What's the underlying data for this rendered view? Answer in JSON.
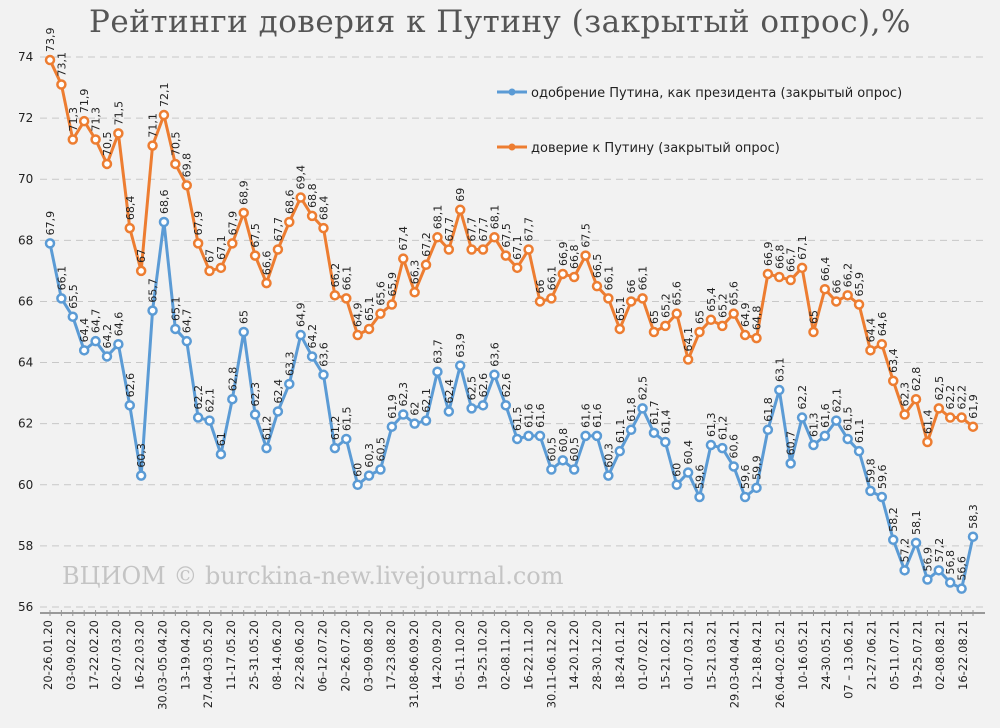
{
  "chart_data": {
    "type": "line",
    "title": "Рейтинги доверия к Путину (закрытый опрос),%",
    "watermark": "ВЦИОМ © burckina-new.livejournal.com",
    "xlabel": "",
    "ylabel": "",
    "ylim": [
      56,
      74
    ],
    "yticks": [
      56,
      58,
      60,
      62,
      64,
      66,
      68,
      70,
      72,
      74
    ],
    "grid": true,
    "legend_position": "top-right",
    "x_tick_labels": [
      "20-26.01.20",
      "03-09.02.20",
      "17-22.02.20",
      "02-07.03.20",
      "16-22.03.20",
      "30.03–05.04.20",
      "13-19.04.20",
      "27.04-03.05.20",
      "11-17.05.20",
      "25-31.05.20",
      "08-14.06.20",
      "22-28.06.20",
      "06–12.07.20",
      "20–26.07.20",
      "03–09.08.20",
      "17-23.08.20",
      "31.08-06.09.20",
      "14-20.09.20",
      "05-11.10.20",
      "19-25.10.20",
      "02-08.11.20",
      "16-22.11.20",
      "30.11-06.12.20",
      "14-20.12.20",
      "28-30.12.20",
      "18-24.01.21",
      "01-07.02.21",
      "15-21.02.21",
      "01-07.03.21",
      "15-21.03.21",
      "29.03-04.04.21",
      "12-18.04.21",
      "26.04-02.05.21",
      "10-16.05.21",
      "24-30.05.21",
      "07 – 13.06.21",
      "21-27.06.21",
      "05-11.07.21",
      "19-25.07.21",
      "02-08.08.21",
      "16-22.08.21"
    ],
    "series": [
      {
        "name": "одобрение Путина, как президента (закрытый опрос)",
        "color": "#5b9bd5",
        "values": [
          67.9,
          66.1,
          65.5,
          64.4,
          64.7,
          64.2,
          64.6,
          62.6,
          60.3,
          65.7,
          68.6,
          65.1,
          64.7,
          62.2,
          62.1,
          61,
          62.8,
          65,
          62.3,
          61.2,
          62.4,
          63.3,
          64.9,
          64.2,
          63.6,
          61.2,
          61.5,
          60,
          60.3,
          60.5,
          61.9,
          62.3,
          62,
          62.1,
          63.7,
          62.4,
          63.9,
          62.5,
          62.6,
          63.6,
          62.6,
          61.5,
          61.6,
          61.6,
          60.5,
          60.8,
          60.5,
          61.6,
          61.6,
          60.3,
          61.1,
          61.8,
          62.5,
          61.7,
          61.4,
          60,
          60.4,
          59.6,
          61.3,
          61.2,
          60.6,
          59.6,
          59.9,
          61.8,
          63.1,
          60.7,
          62.2,
          61.3,
          61.6,
          62.1,
          61.5,
          61.1,
          59.8,
          59.6,
          58.2,
          57.2,
          58.1,
          56.9,
          57.2,
          56.8,
          56.6,
          58.3
        ]
      },
      {
        "name": "доверие к Путину (закрытый опрос)",
        "color": "#ed7d31",
        "values": [
          73.9,
          73.1,
          71.3,
          71.9,
          71.3,
          70.5,
          71.5,
          68.4,
          67,
          71.1,
          72.1,
          70.5,
          69.8,
          67.9,
          67,
          67.1,
          67.9,
          68.9,
          67.5,
          66.6,
          67.7,
          68.6,
          69.4,
          68.8,
          68.4,
          66.2,
          66.1,
          64.9,
          65.1,
          65.6,
          65.9,
          67.4,
          66.3,
          67.2,
          68.1,
          67.7,
          69,
          67.7,
          67.7,
          68.1,
          67.5,
          67.1,
          67.7,
          66,
          66.1,
          66.9,
          66.8,
          67.5,
          66.5,
          66.1,
          65.1,
          66,
          66.1,
          65,
          65.2,
          65.6,
          64.1,
          65,
          65.4,
          65.2,
          65.6,
          64.9,
          64.8,
          66.9,
          66.8,
          66.7,
          67.1,
          65,
          66.4,
          66,
          66.2,
          65.9,
          64.4,
          64.6,
          63.4,
          62.3,
          62.8,
          61.4,
          62.5,
          62.2,
          62.2,
          61.9
        ]
      }
    ]
  }
}
